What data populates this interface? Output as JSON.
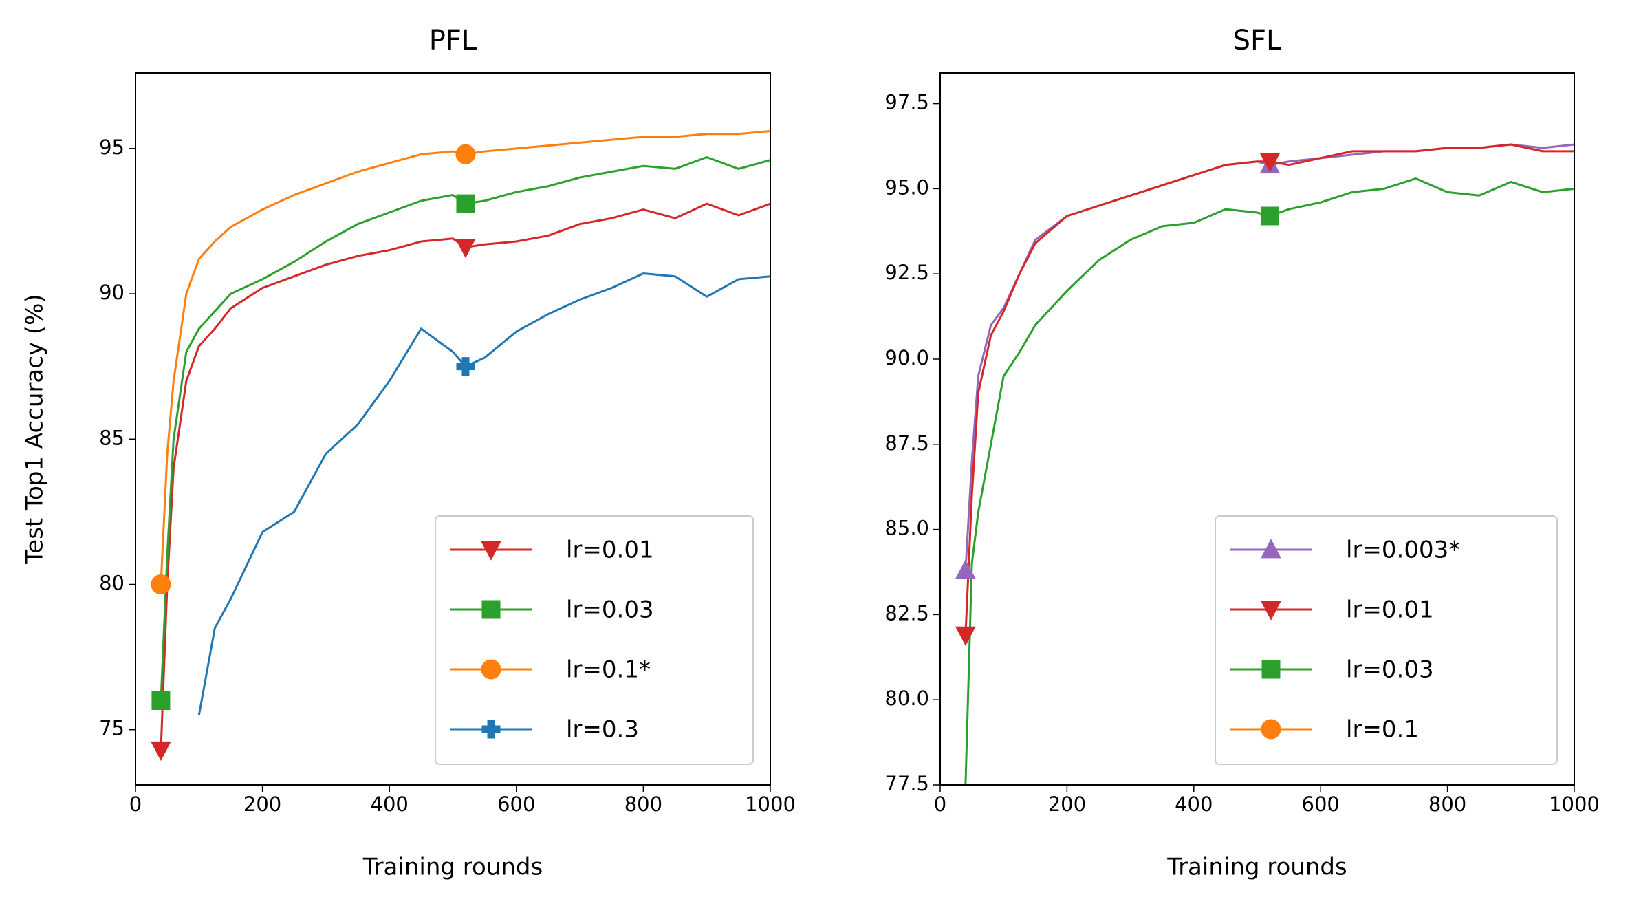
{
  "chart_data": [
    {
      "type": "line",
      "title": "PFL",
      "xlabel": "Training rounds",
      "ylabel": "Test Top1 Accuracy (%)",
      "legend": "lower right",
      "xlim": [
        0,
        1000
      ],
      "xticks": [
        0,
        200,
        400,
        600,
        800,
        1000
      ],
      "ylim": [
        73.1,
        97.6
      ],
      "yticks": [
        75,
        80,
        85,
        90,
        95
      ],
      "x": [
        40,
        50,
        60,
        80,
        100,
        125,
        150,
        200,
        250,
        300,
        350,
        400,
        450,
        500,
        520,
        550,
        600,
        650,
        700,
        750,
        800,
        850,
        900,
        950,
        1000
      ],
      "series": [
        {
          "name": "lr=0.01",
          "color": "#d62728",
          "marker": "v",
          "markevery": [
            0,
            14
          ],
          "values": [
            74.3,
            80,
            84,
            87,
            88.2,
            88.8,
            89.5,
            90.2,
            90.6,
            91,
            91.3,
            91.5,
            91.8,
            91.9,
            91.6,
            91.7,
            91.8,
            92,
            92.4,
            92.6,
            92.9,
            92.6,
            93.1,
            92.7,
            93.1
          ]
        },
        {
          "name": "lr=0.03",
          "color": "#2ca02c",
          "marker": "s",
          "markevery": [
            0,
            14
          ],
          "values": [
            76,
            81,
            85,
            88,
            88.8,
            89.4,
            90,
            90.5,
            91.1,
            91.8,
            92.4,
            92.8,
            93.2,
            93.4,
            93.1,
            93.2,
            93.5,
            93.7,
            94,
            94.2,
            94.4,
            94.3,
            94.7,
            94.3,
            94.6
          ]
        },
        {
          "name": "lr=0.1*",
          "color": "#ff7f0e",
          "marker": "o",
          "markevery": [
            0,
            14
          ],
          "values": [
            80,
            84.5,
            87,
            90,
            91.2,
            91.8,
            92.3,
            92.9,
            93.4,
            93.8,
            94.2,
            94.5,
            94.8,
            94.9,
            94.8,
            94.9,
            95,
            95.1,
            95.2,
            95.3,
            95.4,
            95.4,
            95.5,
            95.5,
            95.6
          ]
        },
        {
          "name": "lr=0.3",
          "color": "#1f77b4",
          "marker": "P",
          "markevery": [
            14
          ],
          "values": [
            null,
            null,
            null,
            null,
            75.5,
            78.5,
            79.5,
            81.8,
            82.5,
            84.5,
            85.5,
            87,
            88.8,
            88,
            87.5,
            87.8,
            88.7,
            89.3,
            89.8,
            90.2,
            90.7,
            90.6,
            89.9,
            90.5,
            90.6
          ]
        }
      ]
    },
    {
      "type": "line",
      "title": "SFL",
      "xlabel": "Training rounds",
      "legend": "lower right",
      "xlim": [
        0,
        1000
      ],
      "xticks": [
        0,
        200,
        400,
        600,
        800,
        1000
      ],
      "ylim": [
        77.5,
        98.4
      ],
      "yticks": [
        77.5,
        {
          "value": 80,
          "label": "80.0"
        },
        82.5,
        {
          "value": 85,
          "label": "85.0"
        },
        87.5,
        {
          "value": 90,
          "label": "90.0"
        },
        92.5,
        {
          "value": 95,
          "label": "95.0"
        },
        97.5
      ],
      "x": [
        40,
        50,
        60,
        80,
        100,
        125,
        150,
        200,
        250,
        300,
        350,
        400,
        450,
        500,
        520,
        550,
        600,
        650,
        700,
        750,
        800,
        850,
        900,
        950,
        1000
      ],
      "series": [
        {
          "name": "lr=0.003*",
          "color": "#9467bd",
          "marker": "^",
          "markevery": [
            0,
            14
          ],
          "values": [
            83.8,
            87,
            89.5,
            91,
            91.5,
            92.5,
            93.5,
            94.2,
            94.5,
            94.8,
            95.1,
            95.4,
            95.7,
            95.8,
            95.7,
            95.8,
            95.9,
            96,
            96.1,
            96.1,
            96.2,
            96.2,
            96.3,
            96.2,
            96.3
          ]
        },
        {
          "name": "lr=0.01",
          "color": "#d62728",
          "marker": "v",
          "markevery": [
            0,
            14
          ],
          "values": [
            81.9,
            86,
            89,
            90.7,
            91.4,
            92.5,
            93.4,
            94.2,
            94.5,
            94.8,
            95.1,
            95.4,
            95.7,
            95.8,
            95.8,
            95.7,
            95.9,
            96.1,
            96.1,
            96.1,
            96.2,
            96.2,
            96.3,
            96.1,
            96.1
          ]
        },
        {
          "name": "lr=0.03",
          "color": "#2ca02c",
          "marker": "s",
          "markevery": [
            14
          ],
          "values": [
            77.5,
            84,
            85.5,
            87.5,
            89.5,
            90.2,
            91,
            92,
            92.9,
            93.5,
            93.9,
            94,
            94.4,
            94.3,
            94.2,
            94.4,
            94.6,
            94.9,
            95,
            95.3,
            94.9,
            94.8,
            95.2,
            94.9,
            95
          ]
        },
        {
          "name": "lr=0.1",
          "color": "#ff7f0e",
          "marker": "o",
          "markevery": [],
          "values": [
            null,
            null,
            null,
            null,
            null,
            null,
            null,
            null,
            null,
            null,
            null,
            null,
            null,
            null,
            null,
            null,
            null,
            null,
            null,
            null,
            null,
            null,
            null,
            null,
            null
          ]
        }
      ]
    }
  ]
}
